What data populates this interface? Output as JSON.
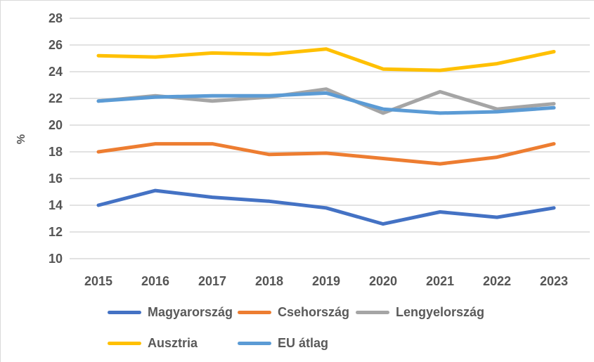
{
  "chart_data": {
    "type": "line",
    "title": "",
    "ylabel": "%",
    "xlabel": "",
    "categories": [
      "2015",
      "2016",
      "2017",
      "2018",
      "2019",
      "2020",
      "2021",
      "2022",
      "2023"
    ],
    "series": [
      {
        "name": "Magyarország",
        "color": "#4472C4",
        "values": [
          14.0,
          15.1,
          14.6,
          14.3,
          13.8,
          12.6,
          13.5,
          13.1,
          13.8
        ]
      },
      {
        "name": "Csehország",
        "color": "#ED7D31",
        "values": [
          18.0,
          18.6,
          18.6,
          17.8,
          17.9,
          17.5,
          17.1,
          17.6,
          18.6
        ]
      },
      {
        "name": "Lengyelország",
        "color": "#A5A5A5",
        "values": [
          21.8,
          22.2,
          21.8,
          22.1,
          22.7,
          20.9,
          22.5,
          21.2,
          21.6
        ]
      },
      {
        "name": "Ausztria",
        "color": "#FFC000",
        "values": [
          25.2,
          25.1,
          25.4,
          25.3,
          25.7,
          24.2,
          24.1,
          24.6,
          25.5
        ]
      },
      {
        "name": "EU átlag",
        "color": "#5B9BD5",
        "values": [
          21.8,
          22.1,
          22.2,
          22.2,
          22.4,
          21.2,
          20.9,
          21.0,
          21.3
        ]
      }
    ],
    "ylim": [
      10,
      28
    ],
    "ytick_step": 2,
    "grid": true,
    "gridline_color": "#D9D9D9",
    "axis_text_color": "#595959",
    "legend_position": "bottom"
  }
}
